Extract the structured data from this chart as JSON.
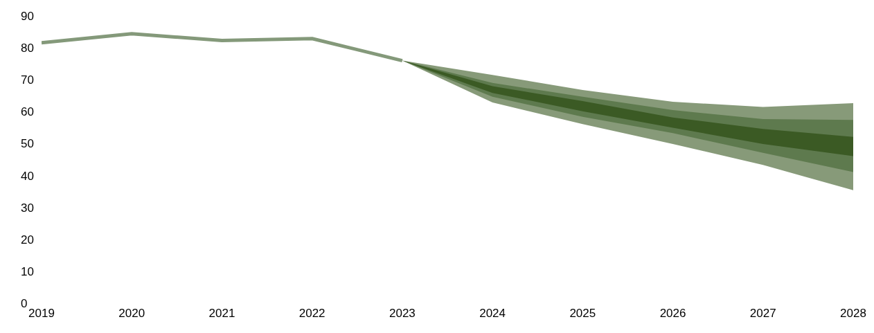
{
  "chart_data": {
    "type": "line",
    "categories": [
      "2019",
      "2020",
      "2021",
      "2022",
      "2023",
      "2024",
      "2025",
      "2026",
      "2027",
      "2028"
    ],
    "series": [
      {
        "color": "#84997a",
        "values": [
          81.6,
          84.4,
          82.3,
          82.9,
          76.0,
          null,
          null,
          null,
          null,
          null
        ]
      },
      {
        "type": "area",
        "color": "#879a79",
        "values": [
          null,
          null,
          null,
          null,
          null,
          null,
          null,
          null,
          null,
          null
        ],
        "lower": [
          null,
          null,
          null,
          null,
          76.0,
          62.9,
          56.1,
          49.9,
          43.3,
          35.4
        ],
        "upper": [
          null,
          null,
          null,
          null,
          76.0,
          71.5,
          66.8,
          63.1,
          61.5,
          62.7
        ]
      },
      {
        "type": "area",
        "color": "#5e7a4e",
        "values": [
          null,
          null,
          null,
          null,
          null,
          null,
          null,
          null,
          null,
          null
        ],
        "lower": [
          null,
          null,
          null,
          null,
          76.0,
          64.7,
          58.4,
          53.3,
          47.1,
          41.1
        ],
        "upper": [
          null,
          null,
          null,
          null,
          76.0,
          69.0,
          64.7,
          60.5,
          57.7,
          57.4
        ]
      },
      {
        "type": "area",
        "color": "#3b5a24",
        "values": [
          null,
          null,
          null,
          null,
          null,
          null,
          null,
          null,
          null,
          null
        ],
        "lower": [
          null,
          null,
          null,
          null,
          76.0,
          65.9,
          60.1,
          55.0,
          49.9,
          46.1
        ],
        "upper": [
          null,
          null,
          null,
          null,
          76.0,
          68.0,
          63.3,
          58.2,
          54.6,
          52.1
        ]
      }
    ],
    "ylim": [
      0,
      90
    ],
    "yticks": [
      0,
      10,
      20,
      30,
      40,
      50,
      60,
      70,
      80,
      90
    ],
    "grid": false,
    "legend": false,
    "marker": "none",
    "line_style": "solid"
  }
}
